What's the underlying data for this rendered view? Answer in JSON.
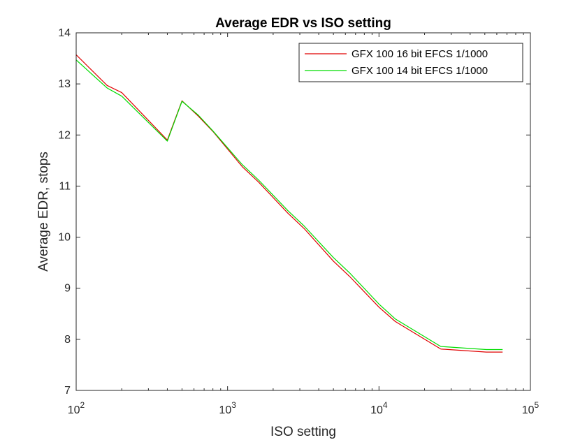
{
  "chart_data": {
    "type": "line",
    "title": "Average EDR vs ISO setting",
    "xlabel": "ISO setting",
    "ylabel": "Average EDR, stops",
    "xscale": "log",
    "xlim": [
      100,
      100000
    ],
    "ylim": [
      7,
      14
    ],
    "xticks": [
      {
        "value": 100,
        "base": "10",
        "exp": "2"
      },
      {
        "value": 1000,
        "base": "10",
        "exp": "3"
      },
      {
        "value": 10000,
        "base": "10",
        "exp": "4"
      },
      {
        "value": 100000,
        "base": "10",
        "exp": "5"
      }
    ],
    "yticks": [
      7,
      8,
      9,
      10,
      11,
      12,
      13,
      14
    ],
    "grid": false,
    "legend_position": "top-right",
    "series": [
      {
        "name": "GFX 100 16 bit EFCS 1/1000",
        "color": "#e00000",
        "x": [
          100,
          160,
          200,
          400,
          500,
          640,
          800,
          1250,
          1600,
          2500,
          3200,
          5000,
          6400,
          10000,
          12800,
          25600,
          51200,
          65536
        ],
        "y": [
          13.57,
          12.97,
          12.83,
          11.9,
          12.67,
          12.37,
          12.07,
          11.38,
          11.08,
          10.47,
          10.17,
          9.53,
          9.23,
          8.63,
          8.35,
          7.81,
          7.75,
          7.75
        ]
      },
      {
        "name": "GFX 100 14 bit EFCS 1/1000",
        "color": "#00dd00",
        "x": [
          100,
          160,
          200,
          400,
          500,
          640,
          800,
          1250,
          1600,
          2500,
          3200,
          5000,
          6400,
          10000,
          12800,
          25600,
          51200,
          65536
        ],
        "y": [
          13.47,
          12.92,
          12.76,
          11.88,
          12.66,
          12.39,
          12.08,
          11.42,
          11.12,
          10.52,
          10.22,
          9.6,
          9.3,
          8.69,
          8.4,
          7.86,
          7.8,
          7.8
        ]
      }
    ]
  }
}
